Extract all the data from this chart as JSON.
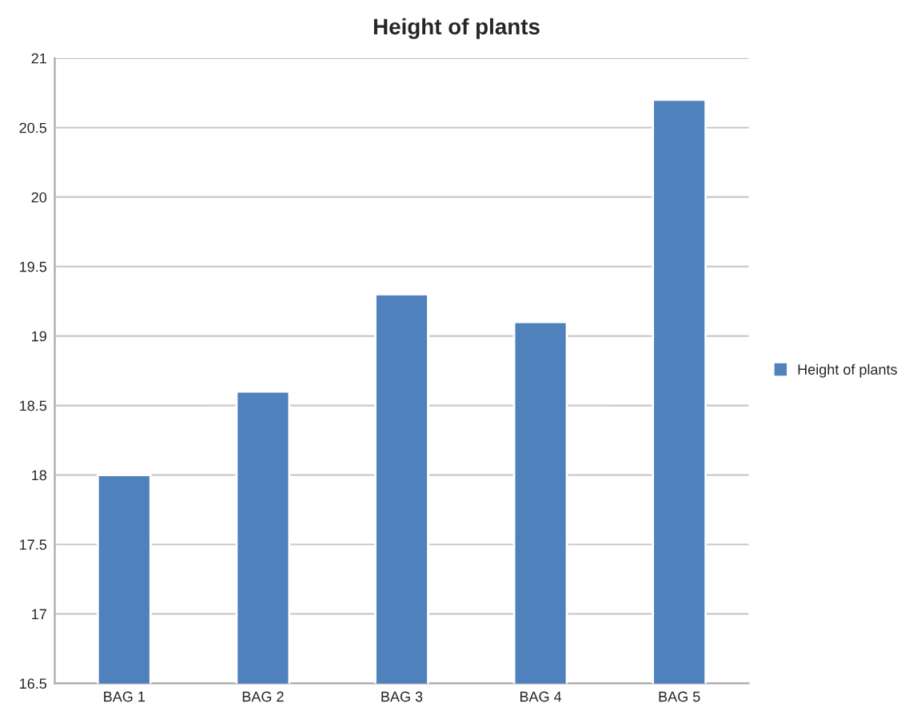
{
  "chart_data": {
    "type": "bar",
    "title": "Height of plants",
    "categories": [
      "BAG 1",
      "BAG 2",
      "BAG 3",
      "BAG 4",
      "BAG 5"
    ],
    "series": [
      {
        "name": "Height of plants",
        "color": "#4f81bd",
        "values": [
          18,
          18.6,
          19.3,
          19.1,
          20.7
        ]
      }
    ],
    "ylim": [
      16.5,
      21
    ],
    "yticks": [
      16.5,
      17,
      17.5,
      18,
      18.5,
      19,
      19.5,
      20,
      20.5,
      21
    ],
    "grid": "y",
    "legend": "right"
  }
}
